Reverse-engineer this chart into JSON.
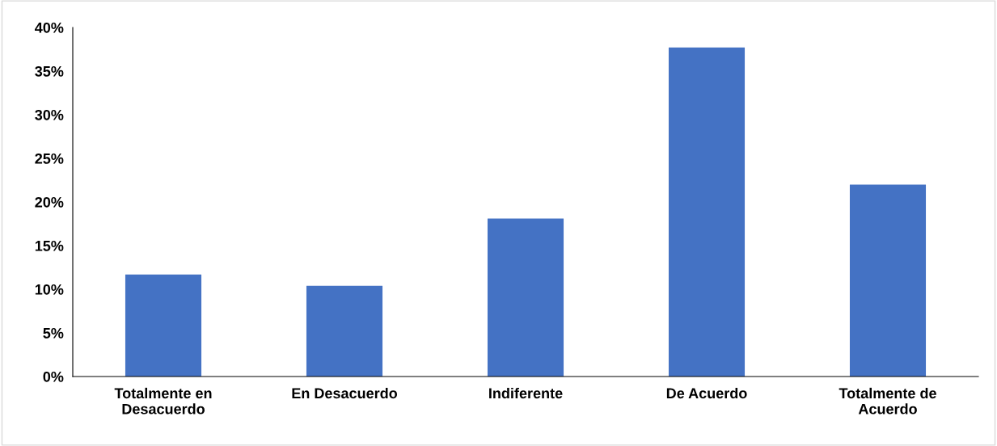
{
  "chart_data": {
    "type": "bar",
    "categories": [
      "Totalmente en\nDesacuerdo",
      "En Desacuerdo",
      "Indiferente",
      "De Acuerdo",
      "Totalmente de\nAcuerdo"
    ],
    "values": [
      11.7,
      10.4,
      18.1,
      37.7,
      22.0
    ],
    "color": "#4472c4",
    "ylim": [
      0,
      40
    ],
    "yticks": [
      {
        "value": 0,
        "label": "0%"
      },
      {
        "value": 5,
        "label": "5%"
      },
      {
        "value": 10,
        "label": "10%"
      },
      {
        "value": 15,
        "label": "15%"
      },
      {
        "value": 20,
        "label": "20%"
      },
      {
        "value": 25,
        "label": "25%"
      },
      {
        "value": 30,
        "label": "30%"
      },
      {
        "value": 35,
        "label": "35%"
      },
      {
        "value": 40,
        "label": "40%"
      }
    ],
    "grid": false,
    "legend": false
  }
}
